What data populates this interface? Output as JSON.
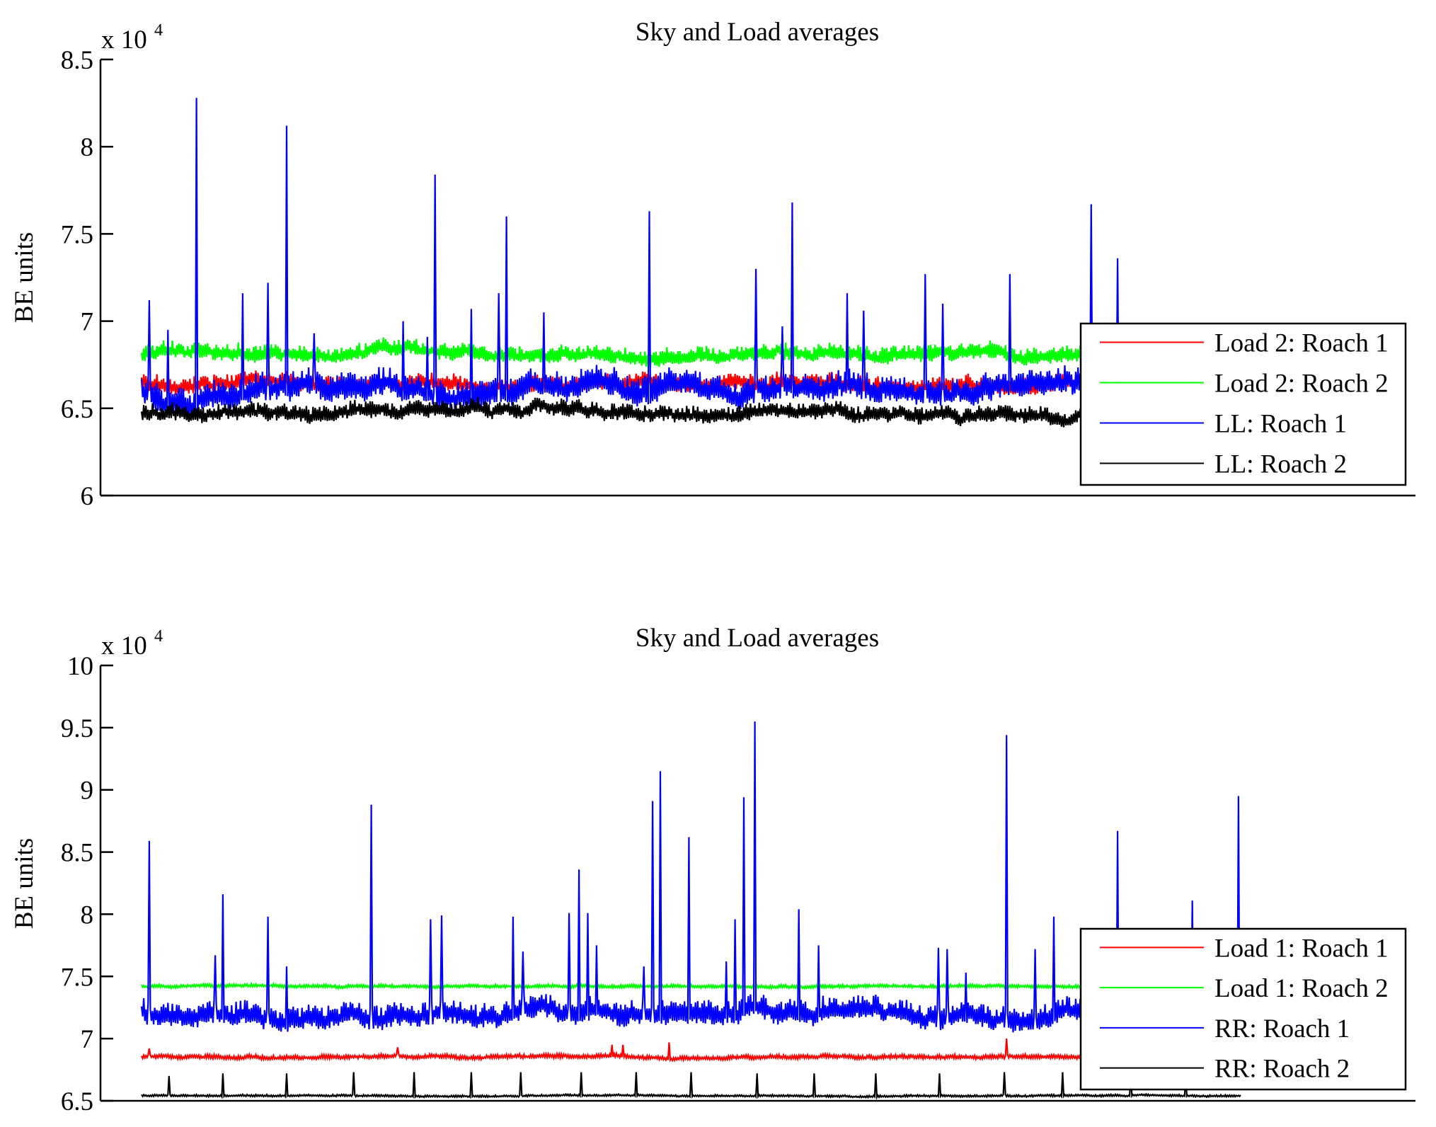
{
  "chart_data": [
    {
      "type": "line",
      "title": "Sky and Load averages",
      "xlabel": "",
      "ylabel": "BE units",
      "y_multiplier_label": "x 10",
      "y_multiplier_exponent": "4",
      "ylim": [
        6,
        8.5
      ],
      "yticks": [
        6,
        6.5,
        7,
        7.5,
        8,
        8.5
      ],
      "ytick_labels": [
        "6",
        "6.5",
        "7",
        "7.5",
        "8",
        "8.5"
      ],
      "xlim_samples": [
        0,
        1000
      ],
      "xticks": [],
      "grid": false,
      "legend_position": "bottom-right",
      "series": [
        {
          "name": "Load 2: Roach 1",
          "color": "#ff0000",
          "baseline": 6.64,
          "ripple": 0.06,
          "spikes": []
        },
        {
          "name": "Load 2: Roach 2",
          "color": "#00ff00",
          "baseline": 6.8,
          "ripple": 0.06,
          "spikes": []
        },
        {
          "name": "LL: Roach 1",
          "color": "#0000ff",
          "baseline": 6.6,
          "ripple": 0.1,
          "spikes": [
            [
              7,
              7.12
            ],
            [
              24,
              6.95
            ],
            [
              50,
              8.28
            ],
            [
              92,
              7.16
            ],
            [
              115,
              7.22
            ],
            [
              132,
              8.12
            ],
            [
              157,
              6.93
            ],
            [
              238,
              7.0
            ],
            [
              260,
              6.91
            ],
            [
              267,
              7.84
            ],
            [
              300,
              7.07
            ],
            [
              325,
              7.16
            ],
            [
              332,
              7.6
            ],
            [
              366,
              7.05
            ],
            [
              462,
              7.63
            ],
            [
              559,
              7.3
            ],
            [
              583,
              6.97
            ],
            [
              592,
              7.68
            ],
            [
              642,
              7.16
            ],
            [
              657,
              7.06
            ],
            [
              713,
              7.27
            ],
            [
              729,
              7.1
            ],
            [
              790,
              7.27
            ],
            [
              864,
              7.67
            ],
            [
              888,
              7.36
            ]
          ]
        },
        {
          "name": "LL: Roach 2",
          "color": "#000000",
          "baseline": 6.46,
          "ripple": 0.06,
          "spikes": []
        }
      ]
    },
    {
      "type": "line",
      "title": "Sky and Load averages",
      "xlabel": "",
      "ylabel": "BE units",
      "y_multiplier_label": "x 10",
      "y_multiplier_exponent": "4",
      "ylim": [
        6.5,
        10
      ],
      "yticks": [
        6.5,
        7,
        7.5,
        8,
        8.5,
        9,
        9.5,
        10
      ],
      "ytick_labels": [
        "6.5",
        "7",
        "7.5",
        "8",
        "8.5",
        "9",
        "9.5",
        "10"
      ],
      "xlim_samples": [
        0,
        1000
      ],
      "xticks": [],
      "grid": false,
      "legend_position": "bottom-right",
      "series": [
        {
          "name": "Load 1: Roach 1",
          "color": "#ff0000",
          "baseline": 6.85,
          "ripple": 0.02,
          "spikes": [
            [
              7,
              6.92
            ],
            [
              233,
              6.93
            ],
            [
              428,
              6.95
            ],
            [
              438,
              6.95
            ],
            [
              480,
              6.97
            ],
            [
              787,
              7.0
            ]
          ]
        },
        {
          "name": "Load 1: Roach 2",
          "color": "#00ff00",
          "baseline": 7.42,
          "ripple": 0.015,
          "spikes": []
        },
        {
          "name": "RR: Roach 1",
          "color": "#0000ff",
          "baseline": 7.19,
          "ripple": 0.12,
          "spikes": [
            [
              7,
              8.59
            ],
            [
              67,
              7.67
            ],
            [
              74,
              8.16
            ],
            [
              115,
              7.98
            ],
            [
              132,
              7.58
            ],
            [
              209,
              8.88
            ],
            [
              263,
              7.96
            ],
            [
              273,
              7.99
            ],
            [
              338,
              7.98
            ],
            [
              347,
              7.7
            ],
            [
              389,
              8.01
            ],
            [
              398,
              8.36
            ],
            [
              406,
              8.01
            ],
            [
              414,
              7.75
            ],
            [
              457,
              7.58
            ],
            [
              465,
              8.91
            ],
            [
              472,
              9.15
            ],
            [
              498,
              8.62
            ],
            [
              532,
              7.62
            ],
            [
              540,
              7.96
            ],
            [
              548,
              8.94
            ],
            [
              558,
              9.55
            ],
            [
              598,
              8.04
            ],
            [
              616,
              7.75
            ],
            [
              725,
              7.73
            ],
            [
              733,
              7.72
            ],
            [
              750,
              7.53
            ],
            [
              787,
              9.44
            ],
            [
              813,
              7.72
            ],
            [
              830,
              7.98
            ],
            [
              888,
              8.67
            ],
            [
              956,
              8.11
            ],
            [
              998,
              8.95
            ]
          ]
        },
        {
          "name": "RR: Roach 2",
          "color": "#000000",
          "baseline": 6.54,
          "ripple": 0.01,
          "spikes": [
            [
              25,
              6.7
            ],
            [
              74,
              6.72
            ],
            [
              132,
              6.72
            ],
            [
              193,
              6.73
            ],
            [
              248,
              6.73
            ],
            [
              300,
              6.73
            ],
            [
              345,
              6.73
            ],
            [
              400,
              6.73
            ],
            [
              450,
              6.73
            ],
            [
              500,
              6.73
            ],
            [
              560,
              6.72
            ],
            [
              612,
              6.72
            ],
            [
              668,
              6.72
            ],
            [
              726,
              6.72
            ],
            [
              785,
              6.73
            ],
            [
              838,
              6.73
            ],
            [
              900,
              6.73
            ],
            [
              950,
              6.72
            ]
          ]
        }
      ]
    }
  ]
}
